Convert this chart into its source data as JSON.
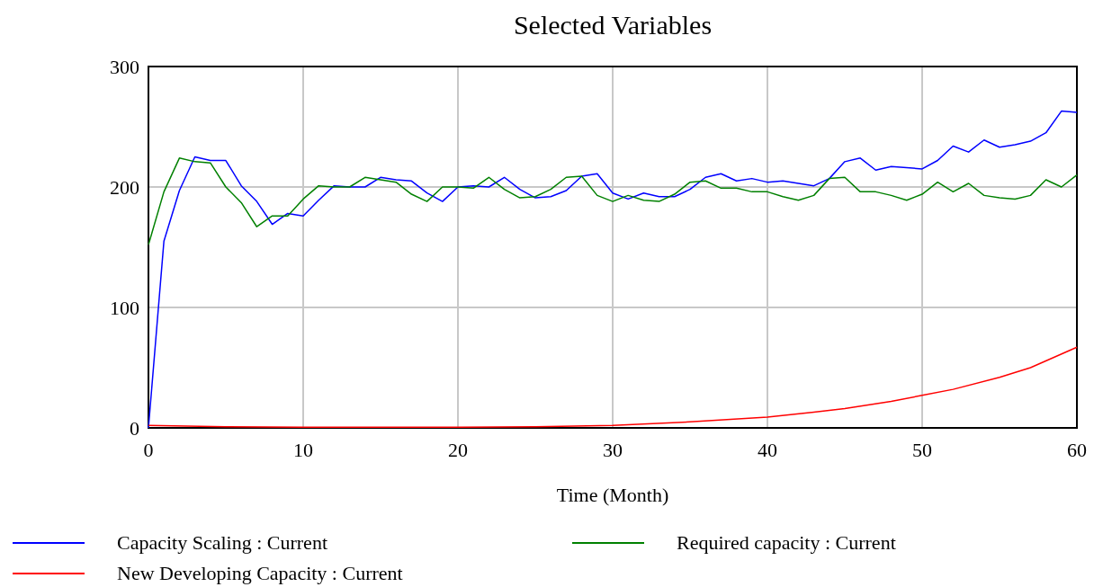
{
  "chart_data": {
    "type": "line",
    "title": "Selected Variables",
    "xlabel": "Time (Month)",
    "x": [
      0,
      1,
      2,
      3,
      4,
      5,
      6,
      7,
      8,
      9,
      10,
      11,
      12,
      13,
      14,
      15,
      16,
      17,
      18,
      19,
      20,
      21,
      22,
      23,
      24,
      25,
      26,
      27,
      28,
      29,
      30,
      31,
      32,
      33,
      34,
      35,
      36,
      37,
      38,
      39,
      40,
      41,
      42,
      43,
      44,
      45,
      46,
      47,
      48,
      49,
      50,
      51,
      52,
      53,
      54,
      55,
      56,
      57,
      58,
      59,
      60
    ],
    "xlim": [
      0,
      60
    ],
    "xticks": [
      0,
      10,
      20,
      30,
      40,
      50,
      60
    ],
    "ylim": [
      0,
      300
    ],
    "yticks": [
      0,
      100,
      200,
      300
    ],
    "grid": true,
    "legend": "bottom",
    "marker": "none",
    "line_style": "solid",
    "series": [
      {
        "name": "Capacity Scaling : Current",
        "color": "#0000ff",
        "values": [
          0,
          155,
          197,
          225,
          222,
          222,
          201,
          188,
          169,
          178,
          176,
          189,
          201,
          200,
          200,
          208,
          206,
          205,
          195,
          188,
          200,
          201,
          200,
          208,
          198,
          191,
          192,
          197,
          209,
          211,
          195,
          190,
          195,
          192,
          192,
          198,
          208,
          211,
          205,
          207,
          204,
          205,
          203,
          201,
          207,
          221,
          224,
          214,
          217,
          216,
          215,
          222,
          234,
          229,
          239,
          233,
          235,
          238,
          245,
          263,
          262
        ]
      },
      {
        "name": "Required capacity : Current",
        "color": "#008000",
        "values": [
          152,
          196,
          224,
          221,
          220,
          200,
          187,
          167,
          176,
          176,
          190,
          201,
          200,
          200,
          208,
          206,
          204,
          194,
          188,
          200,
          200,
          199,
          208,
          198,
          191,
          192,
          198,
          208,
          209,
          193,
          188,
          193,
          189,
          188,
          194,
          204,
          205,
          199,
          199,
          196,
          196,
          192,
          189,
          193,
          207,
          208,
          196,
          196,
          193,
          189,
          194,
          204,
          196,
          203,
          193,
          191,
          190,
          193,
          206,
          200,
          210
        ]
      },
      {
        "name": "New Developing Capacity : Current",
        "color": "#ff0000",
        "x": [
          0,
          5,
          10,
          15,
          20,
          25,
          30,
          35,
          40,
          43,
          45,
          48,
          50,
          52,
          55,
          57,
          60
        ],
        "values": [
          2,
          1,
          0.5,
          0.5,
          0.5,
          1,
          2,
          5,
          9,
          13,
          16,
          22,
          27,
          32,
          42,
          50,
          67
        ]
      }
    ]
  }
}
